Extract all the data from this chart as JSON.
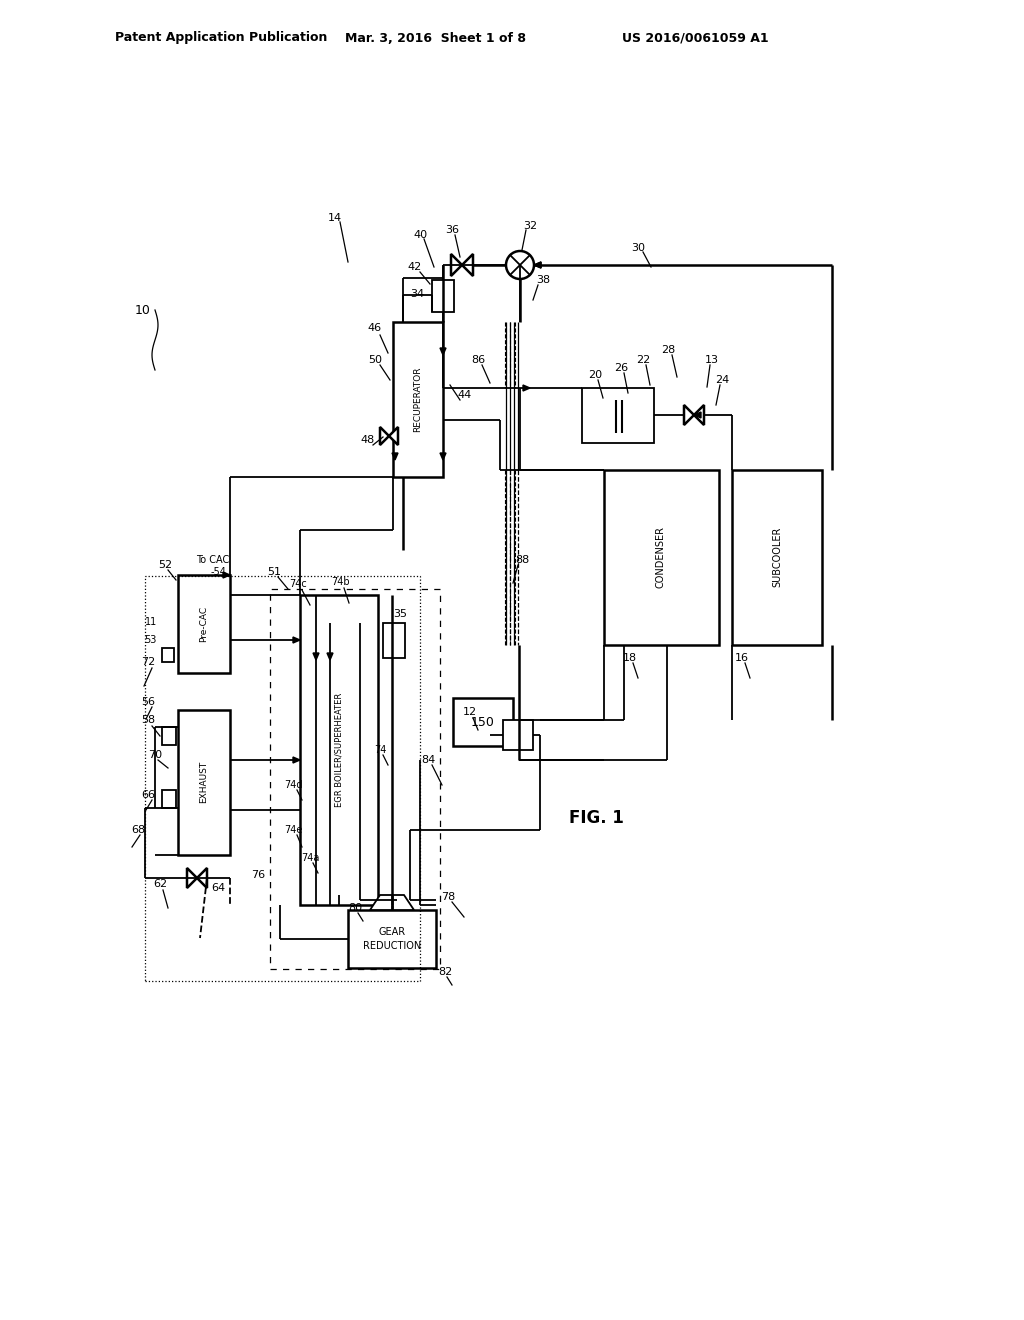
{
  "title_left": "Patent Application Publication",
  "title_mid": "Mar. 3, 2016  Sheet 1 of 8",
  "title_right": "US 2016/0061059 A1",
  "fig_label": "FIG. 1",
  "bg_color": "#ffffff",
  "line_color": "#000000"
}
